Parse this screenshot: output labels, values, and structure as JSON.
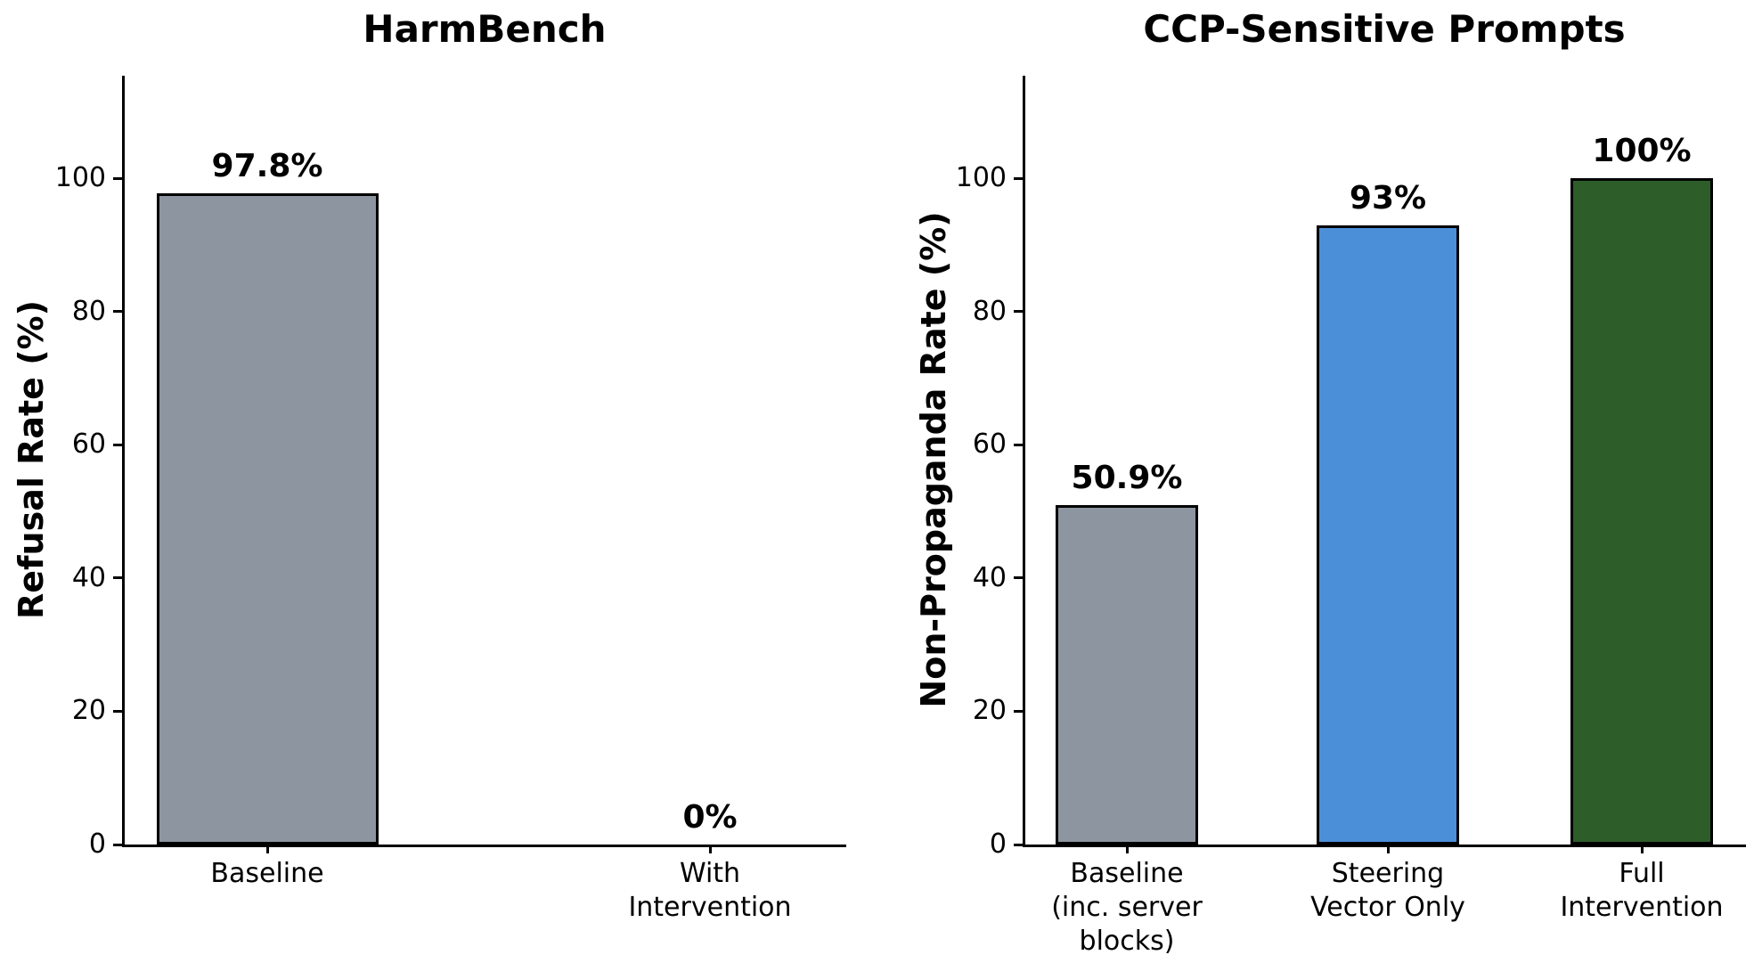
{
  "figure": {
    "background_color": "#ffffff",
    "text_color": "#000000",
    "axis_color": "#000000",
    "bar_edge_color": "#000000"
  },
  "chart_data": [
    {
      "type": "bar",
      "title": "HarmBench",
      "xlabel": "",
      "ylabel": "Refusal Rate (%)",
      "categories": [
        [
          "Baseline"
        ],
        [
          "With",
          "Intervention"
        ]
      ],
      "values": [
        97.8,
        0
      ],
      "value_labels": [
        "97.8%",
        "0%"
      ],
      "bar_colors": [
        "#8D95A0",
        "#8D95A0"
      ],
      "yticks": [
        0,
        20,
        40,
        60,
        80,
        100
      ],
      "ylim": [
        0,
        115.4
      ],
      "grid": false,
      "legend": null
    },
    {
      "type": "bar",
      "title": "CCP-Sensitive Prompts",
      "xlabel": "",
      "ylabel": "Non-Propaganda Rate (%)",
      "categories": [
        [
          "Baseline",
          "(inc. server",
          "blocks)"
        ],
        [
          "Steering",
          "Vector Only"
        ],
        [
          "Full",
          "Intervention"
        ]
      ],
      "values": [
        50.9,
        93,
        100
      ],
      "value_labels": [
        "50.9%",
        "93%",
        "100%"
      ],
      "bar_colors": [
        "#8D95A0",
        "#4B8FD8",
        "#2D5E2A"
      ],
      "yticks": [
        0,
        20,
        40,
        60,
        80,
        100
      ],
      "ylim": [
        0,
        115.4
      ],
      "grid": false,
      "legend": null
    }
  ]
}
